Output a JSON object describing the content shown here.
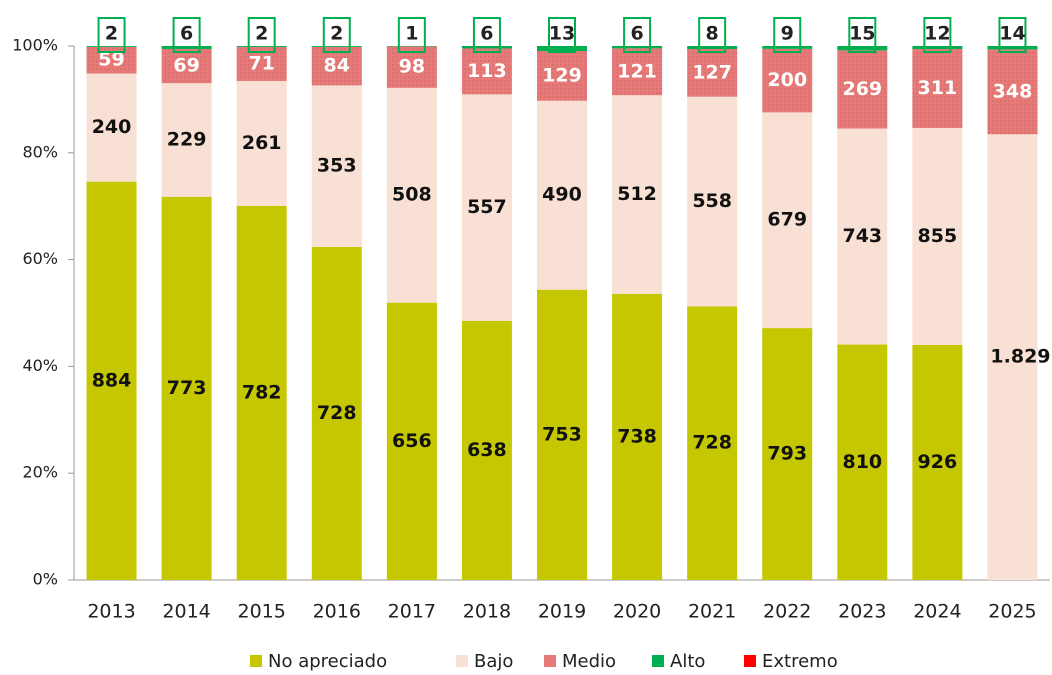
{
  "chart_data": {
    "type": "stacked_bar",
    "stacking": "percent",
    "categories": [
      "2013",
      "2014",
      "2015",
      "2016",
      "2017",
      "2018",
      "2019",
      "2020",
      "2021",
      "2022",
      "2023",
      "2024",
      "2025"
    ],
    "series": [
      {
        "name": "No apreciado",
        "color": "#c5c800",
        "values": [
          884,
          773,
          782,
          728,
          656,
          638,
          753,
          738,
          728,
          793,
          810,
          926,
          null
        ]
      },
      {
        "name": "Bajo",
        "color": "#f8e1d4",
        "values": [
          240,
          229,
          261,
          353,
          508,
          557,
          490,
          512,
          558,
          679,
          743,
          855,
          1829
        ],
        "value_labels": [
          "240",
          "229",
          "261",
          "353",
          "508",
          "557",
          "490",
          "512",
          "558",
          "679",
          "743",
          "855",
          "1.829"
        ]
      },
      {
        "name": "Medio",
        "color": "#e57a78",
        "values": [
          59,
          69,
          71,
          84,
          98,
          113,
          129,
          121,
          127,
          200,
          269,
          311,
          348
        ]
      },
      {
        "name": "Alto",
        "color": "#00b050",
        "values": [
          2,
          6,
          2,
          2,
          1,
          6,
          13,
          6,
          8,
          9,
          15,
          12,
          14
        ]
      },
      {
        "name": "Extremo",
        "color": "#ff0000",
        "values": [
          0,
          0,
          0,
          0,
          0,
          0,
          0,
          0,
          0,
          0,
          0,
          0,
          0
        ]
      }
    ],
    "ylim": [
      0,
      100
    ],
    "yticks": [
      {
        "value": 0,
        "label": "0%"
      },
      {
        "value": 20,
        "label": "20%"
      },
      {
        "value": 40,
        "label": "40%"
      },
      {
        "value": 60,
        "label": "60%"
      },
      {
        "value": 80,
        "label": "80%"
      },
      {
        "value": 100,
        "label": "100%"
      }
    ],
    "legend": "bottom",
    "grid": false
  }
}
